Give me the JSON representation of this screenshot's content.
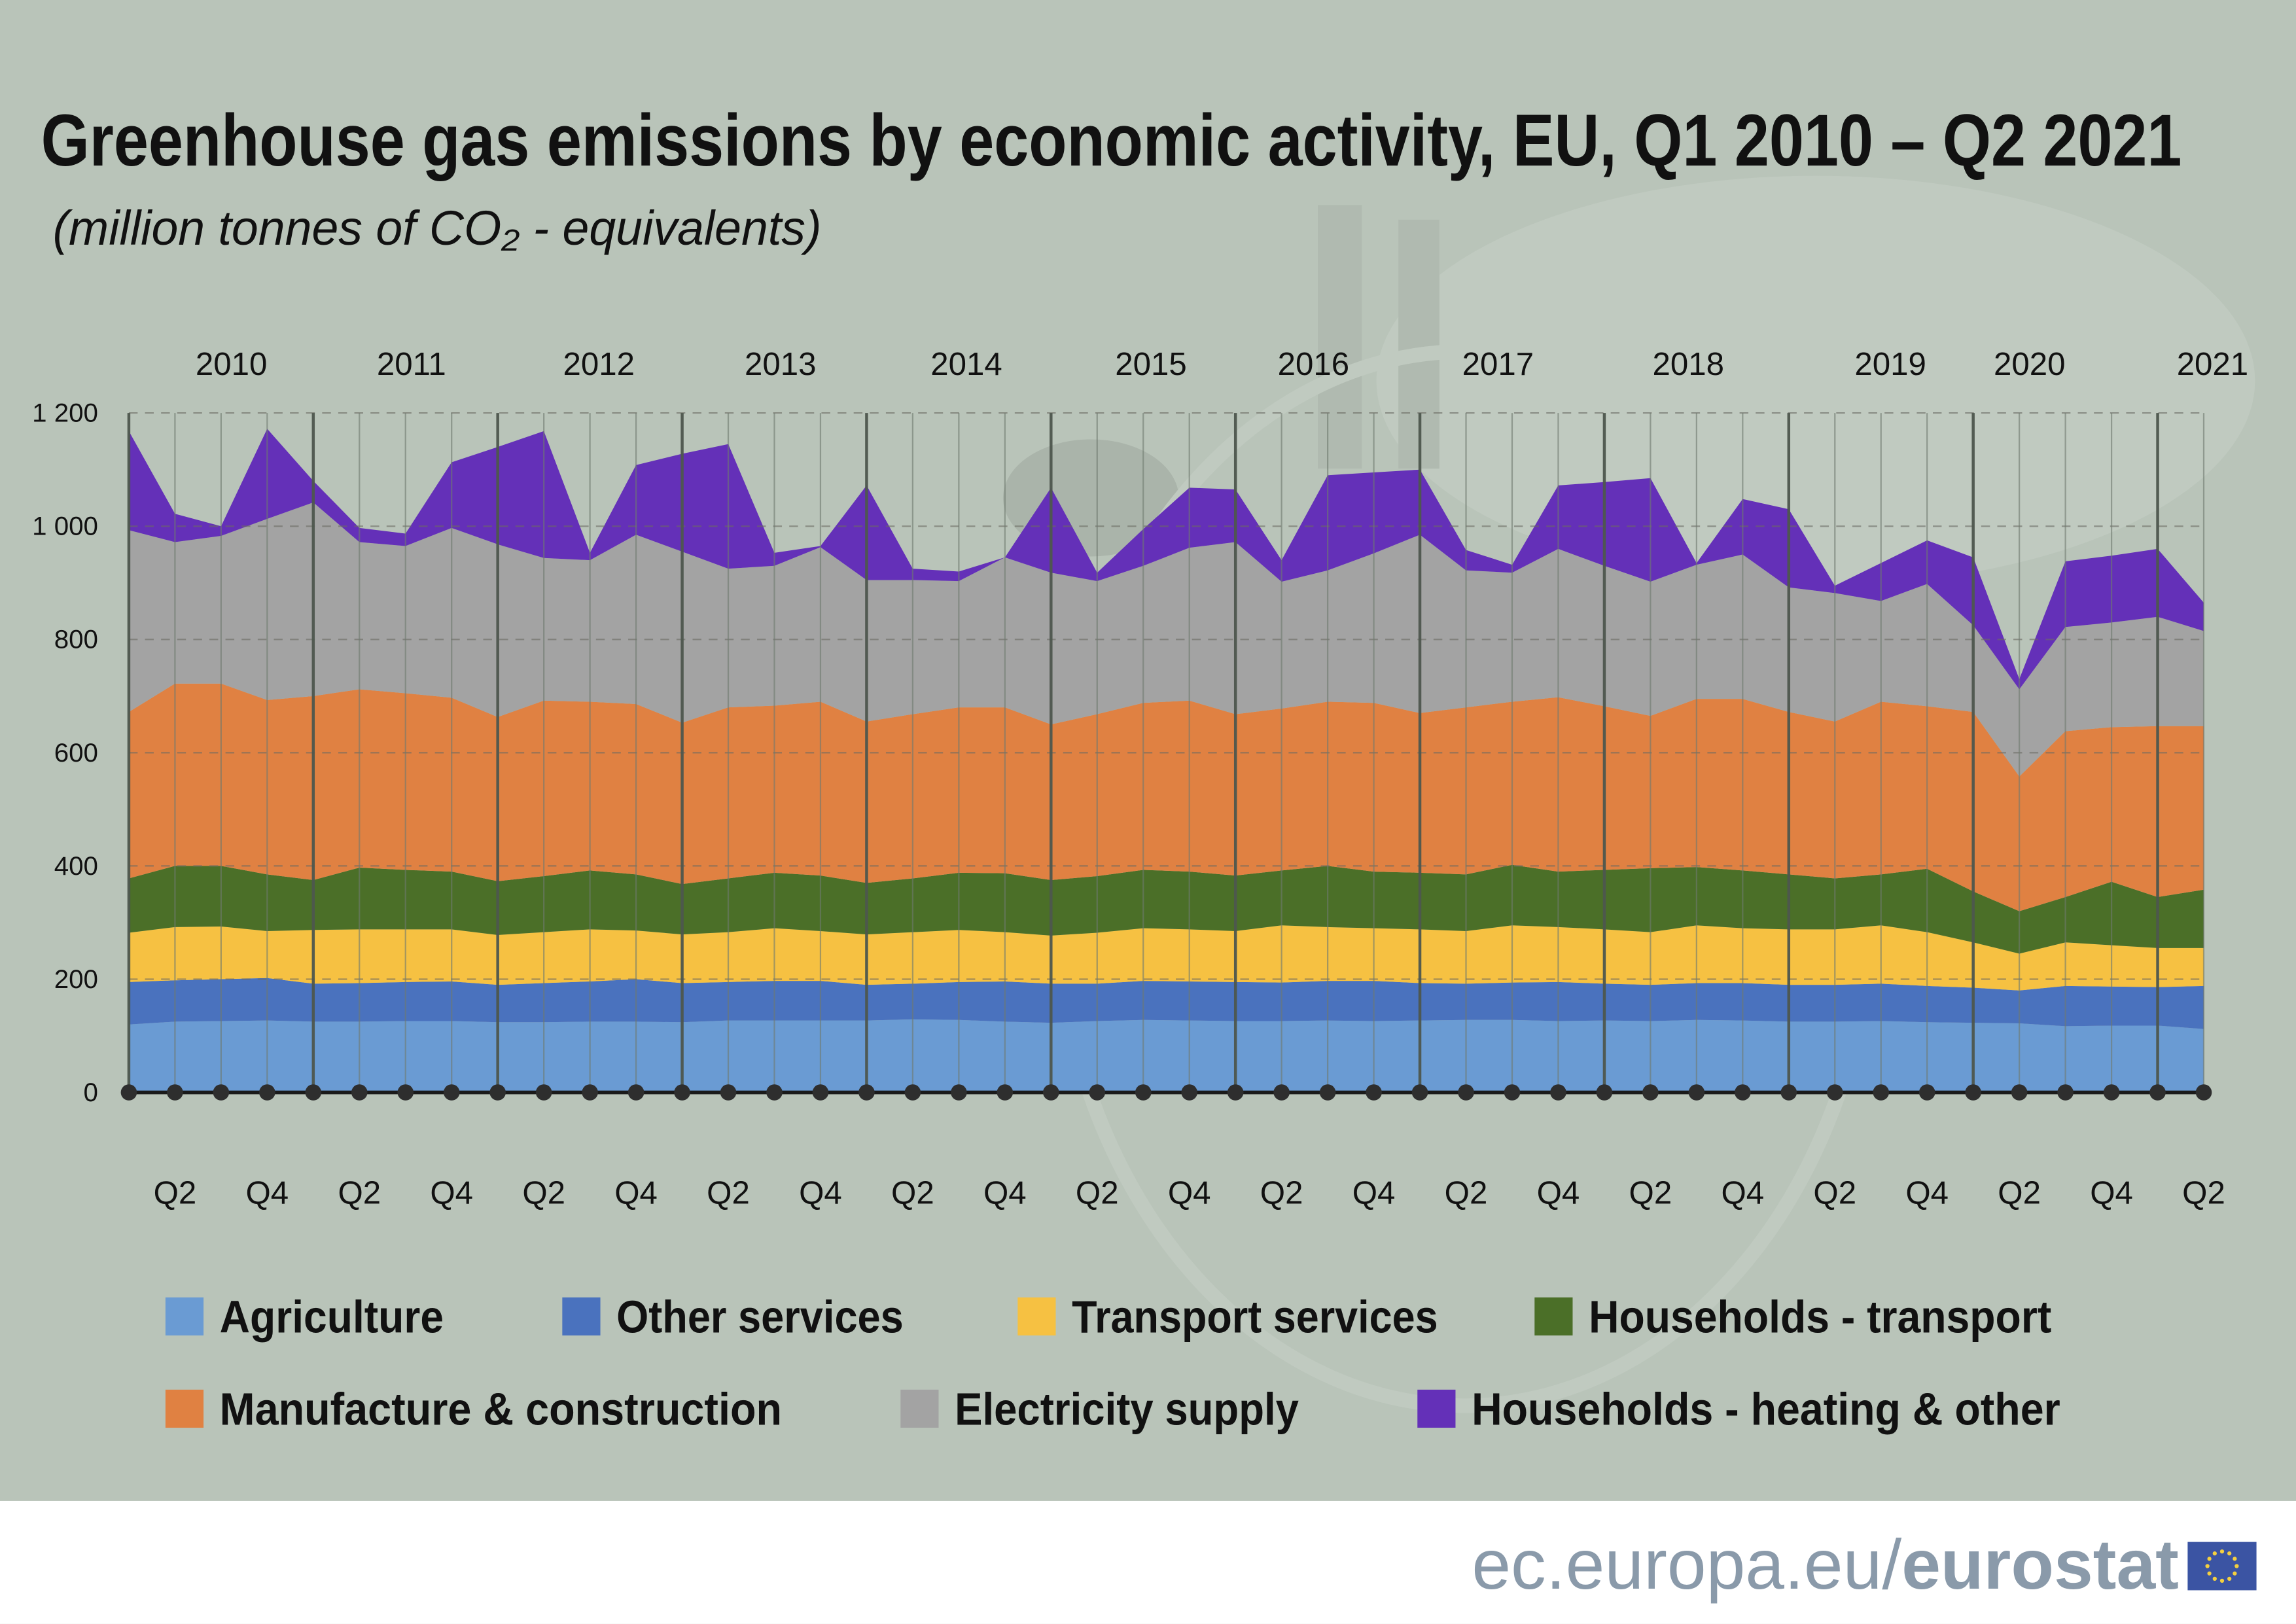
{
  "chart_data": {
    "type": "area",
    "stacked": true,
    "title": "Greenhouse gas emissions by economic activity, EU, Q1 2010 – Q2 2021",
    "subtitle": "(million tonnes of CO₂ - equivalents)",
    "ylim": [
      0,
      1200
    ],
    "yticks": [
      "0",
      "200",
      "400",
      "600",
      "800",
      "1 000",
      "1 200"
    ],
    "ytick_values": [
      0,
      200,
      400,
      600,
      800,
      1000,
      1200
    ],
    "grid": "horizontal dashed",
    "legend_placement": "bottom",
    "years": [
      "2010",
      "2011",
      "2012",
      "2013",
      "2014",
      "2015",
      "2016",
      "2017",
      "2018",
      "2019",
      "2020",
      "2021"
    ],
    "quarter_labels": [
      "Q2",
      "Q4"
    ],
    "x": [
      "2010Q1",
      "2010Q2",
      "2010Q3",
      "2010Q4",
      "2011Q1",
      "2011Q2",
      "2011Q3",
      "2011Q4",
      "2012Q1",
      "2012Q2",
      "2012Q3",
      "2012Q4",
      "2013Q1",
      "2013Q2",
      "2013Q3",
      "2013Q4",
      "2014Q1",
      "2014Q2",
      "2014Q3",
      "2014Q4",
      "2015Q1",
      "2015Q2",
      "2015Q3",
      "2015Q4",
      "2016Q1",
      "2016Q2",
      "2016Q3",
      "2016Q4",
      "2017Q1",
      "2017Q2",
      "2017Q3",
      "2017Q4",
      "2018Q1",
      "2018Q2",
      "2018Q3",
      "2018Q4",
      "2019Q1",
      "2019Q2",
      "2019Q3",
      "2019Q4",
      "2020Q1",
      "2020Q2",
      "2020Q3",
      "2020Q4",
      "2021Q1",
      "2021Q2"
    ],
    "series": [
      {
        "name": "Agriculture",
        "color": "#6a9bd3",
        "values": [
          120,
          125,
          126,
          127,
          125,
          125,
          126,
          126,
          124,
          124,
          125,
          125,
          124,
          127,
          127,
          127,
          127,
          129,
          128,
          125,
          123,
          126,
          128,
          127,
          126,
          126,
          127,
          126,
          127,
          128,
          128,
          126,
          127,
          126,
          128,
          127,
          125,
          125,
          126,
          124,
          123,
          122,
          117,
          118,
          118,
          112
        ]
      },
      {
        "name": "Other services",
        "color": "#4a72be",
        "values": [
          75,
          73,
          74,
          75,
          67,
          68,
          69,
          70,
          66,
          69,
          71,
          75,
          69,
          68,
          70,
          70,
          63,
          63,
          67,
          71,
          69,
          66,
          69,
          69,
          69,
          68,
          70,
          71,
          66,
          64,
          66,
          69,
          65,
          64,
          65,
          66,
          65,
          65,
          66,
          64,
          62,
          58,
          71,
          69,
          68,
          76
        ]
      },
      {
        "name": "Transport services",
        "color": "#f6c142",
        "values": [
          87,
          94,
          93,
          83,
          95,
          95,
          93,
          92,
          88,
          90,
          92,
          86,
          86,
          88,
          93,
          88,
          89,
          91,
          92,
          87,
          85,
          90,
          93,
          92,
          90,
          101,
          95,
          93,
          95,
          93,
          101,
          97,
          96,
          93,
          102,
          97,
          98,
          98,
          103,
          95,
          80,
          65,
          77,
          73,
          69,
          67
        ]
      },
      {
        "name": "Households - transport",
        "color": "#4b6f28",
        "values": [
          96,
          108,
          107,
          100,
          88,
          109,
          105,
          102,
          95,
          99,
          104,
          99,
          89,
          95,
          98,
          98,
          91,
          95,
          101,
          104,
          98,
          100,
          103,
          102,
          98,
          97,
          108,
          100,
          100,
          100,
          107,
          98,
          105,
          113,
          103,
          102,
          97,
          90,
          90,
          112,
          90,
          75,
          80,
          112,
          90,
          103
        ]
      },
      {
        "name": "Manufacture & construction",
        "color": "#e08142",
        "values": [
          294,
          322,
          322,
          308,
          325,
          315,
          312,
          307,
          290,
          310,
          298,
          301,
          285,
          302,
          295,
          307,
          285,
          290,
          292,
          293,
          275,
          286,
          295,
          302,
          285,
          286,
          290,
          298,
          282,
          295,
          288,
          308,
          289,
          269,
          297,
          303,
          287,
          277,
          305,
          287,
          317,
          238,
          293,
          273,
          302,
          289
        ]
      },
      {
        "name": "Electricity supply",
        "color": "#a3a3a3",
        "values": [
          321,
          250,
          261,
          320,
          342,
          260,
          260,
          300,
          305,
          252,
          250,
          299,
          302,
          245,
          247,
          273,
          250,
          237,
          223,
          265,
          268,
          235,
          242,
          270,
          304,
          224,
          232,
          264,
          315,
          242,
          228,
          262,
          248,
          237,
          237,
          255,
          220,
          227,
          178,
          216,
          153,
          154,
          184,
          185,
          193,
          168
        ]
      },
      {
        "name": "Households - heating & other",
        "color": "#6430b8",
        "values": [
          175,
          50,
          17,
          159,
          38,
          25,
          22,
          116,
          172,
          224,
          13,
          123,
          173,
          220,
          23,
          2,
          167,
          20,
          17,
          0,
          150,
          15,
          65,
          106,
          93,
          38,
          168,
          143,
          115,
          36,
          14,
          112,
          148,
          183,
          3,
          98,
          138,
          13,
          67,
          77,
          120,
          18,
          116,
          118,
          120,
          50
        ]
      }
    ]
  },
  "legend_order": [
    0,
    1,
    2,
    3,
    4,
    5,
    6
  ],
  "footer": {
    "site_prefix": "ec.europa.eu/",
    "site_brand": "eurostat",
    "flag_color": "#3b54a3",
    "star_color": "#f4d03f"
  },
  "colors": {
    "background": "#b9c4b9",
    "footer_bg": "#ffffff"
  }
}
